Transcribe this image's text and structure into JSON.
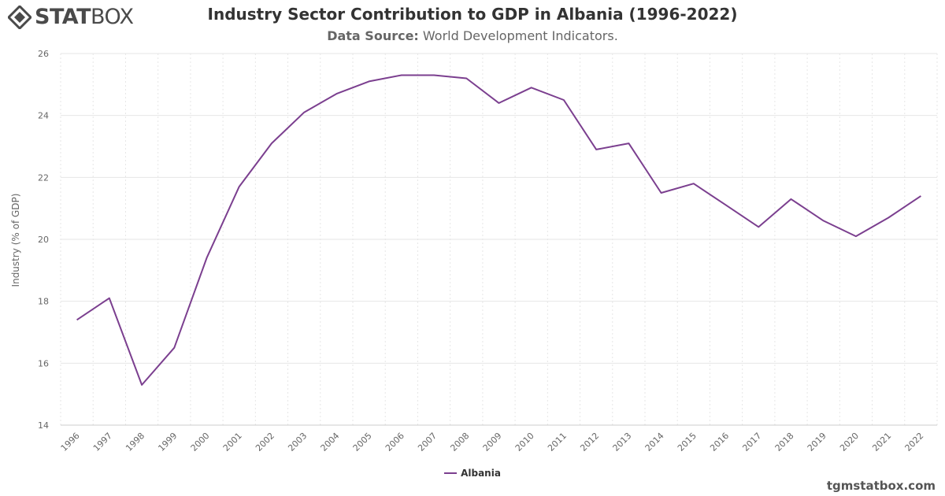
{
  "branding": {
    "logo_bold": "STAT",
    "logo_light": "BOX",
    "credit": "tgmstatbox.com"
  },
  "header": {
    "title": "Industry Sector Contribution to GDP in Albania (1996-2022)",
    "subtitle_label": "Data Source:",
    "subtitle_text": "World Development Indicators."
  },
  "colors": {
    "series": "#7b3f8f",
    "grid": "#e6e6e6",
    "axis_text": "#666666"
  },
  "chart_data": {
    "type": "line",
    "title": "Industry Sector Contribution to GDP in Albania (1996-2022)",
    "subtitle": "Data Source: World Development Indicators.",
    "xlabel": "",
    "ylabel": "Industry (% of GDP)",
    "ylim": [
      14,
      26
    ],
    "yticks": [
      14,
      16,
      18,
      20,
      22,
      24,
      26
    ],
    "grid": true,
    "legend_position": "bottom-center",
    "x": [
      "1996",
      "1997",
      "1998",
      "1999",
      "2000",
      "2001",
      "2002",
      "2003",
      "2004",
      "2005",
      "2006",
      "2007",
      "2008",
      "2009",
      "2010",
      "2011",
      "2012",
      "2013",
      "2014",
      "2015",
      "2016",
      "2017",
      "2018",
      "2019",
      "2020",
      "2021",
      "2022"
    ],
    "series": [
      {
        "name": "Albania",
        "values": [
          17.4,
          18.1,
          15.3,
          16.5,
          19.4,
          21.7,
          23.1,
          24.1,
          24.7,
          25.1,
          25.3,
          25.3,
          25.2,
          24.4,
          24.9,
          24.5,
          22.9,
          23.1,
          21.5,
          21.8,
          21.1,
          20.4,
          21.3,
          20.6,
          20.1,
          20.7,
          21.4
        ]
      }
    ]
  }
}
